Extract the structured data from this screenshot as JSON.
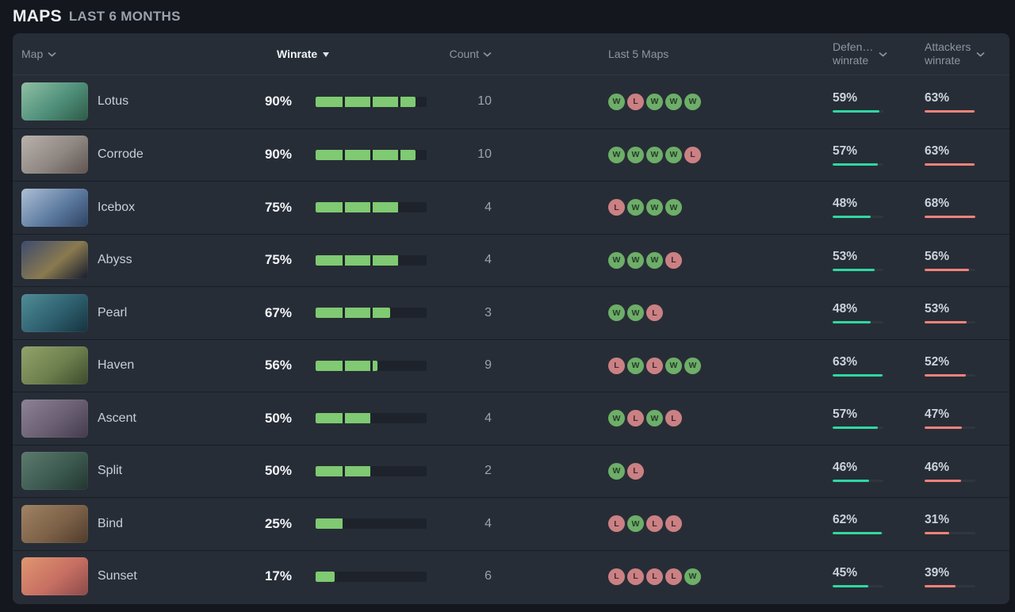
{
  "header": {
    "title": "MAPS",
    "subtitle": "LAST 6 MONTHS"
  },
  "columns": {
    "map": "Map",
    "winrate": "Winrate",
    "count": "Count",
    "last5": "Last 5 Maps",
    "defenders_line1": "Defen…",
    "defenders_line2": "winrate",
    "attackers_line1": "Attackers",
    "attackers_line2": "winrate"
  },
  "colors": {
    "page_bg": "#14171d",
    "card_bg": "#272d36",
    "bar_fill": "#7fca72",
    "bar_track": "#1e232b",
    "win_badge": "#6dae68",
    "loss_badge": "#cb8184",
    "defenders_accent": "#30d7a1",
    "attackers_accent": "#f2827a"
  },
  "rows": [
    {
      "map": "Lotus",
      "winrate_label": "90%",
      "winrate": 90,
      "count": "10",
      "last5": [
        "W",
        "L",
        "W",
        "W",
        "W"
      ],
      "def_label": "59%",
      "def": 59,
      "atk_label": "63%",
      "atk": 63,
      "thumb": [
        "#8fc0a4",
        "#4f8f7a",
        "#2e5a45"
      ]
    },
    {
      "map": "Corrode",
      "winrate_label": "90%",
      "winrate": 90,
      "count": "10",
      "last5": [
        "W",
        "W",
        "W",
        "W",
        "L"
      ],
      "def_label": "57%",
      "def": 57,
      "atk_label": "63%",
      "atk": 63,
      "thumb": [
        "#bab2ab",
        "#8e8782",
        "#5f5450"
      ]
    },
    {
      "map": "Icebox",
      "winrate_label": "75%",
      "winrate": 75,
      "count": "4",
      "last5": [
        "L",
        "W",
        "W",
        "W"
      ],
      "def_label": "48%",
      "def": 48,
      "atk_label": "68%",
      "atk": 68,
      "thumb": [
        "#aebfd6",
        "#5d7ba0",
        "#2e4263"
      ]
    },
    {
      "map": "Abyss",
      "winrate_label": "75%",
      "winrate": 75,
      "count": "4",
      "last5": [
        "W",
        "W",
        "W",
        "L"
      ],
      "def_label": "53%",
      "def": 53,
      "atk_label": "56%",
      "atk": 56,
      "thumb": [
        "#3d4a6e",
        "#8a7a4f",
        "#141a2e"
      ]
    },
    {
      "map": "Pearl",
      "winrate_label": "67%",
      "winrate": 67,
      "count": "3",
      "last5": [
        "W",
        "W",
        "L"
      ],
      "def_label": "48%",
      "def": 48,
      "atk_label": "53%",
      "atk": 53,
      "thumb": [
        "#4f8d96",
        "#2e5f6e",
        "#16323d"
      ]
    },
    {
      "map": "Haven",
      "winrate_label": "56%",
      "winrate": 56,
      "count": "9",
      "last5": [
        "L",
        "W",
        "L",
        "W",
        "W"
      ],
      "def_label": "63%",
      "def": 63,
      "atk_label": "52%",
      "atk": 52,
      "thumb": [
        "#93a36b",
        "#6d7f4d",
        "#3c4a2c"
      ]
    },
    {
      "map": "Ascent",
      "winrate_label": "50%",
      "winrate": 50,
      "count": "4",
      "last5": [
        "W",
        "L",
        "W",
        "L"
      ],
      "def_label": "57%",
      "def": 57,
      "atk_label": "47%",
      "atk": 47,
      "thumb": [
        "#8d8296",
        "#6a5f72",
        "#433a4e"
      ]
    },
    {
      "map": "Split",
      "winrate_label": "50%",
      "winrate": 50,
      "count": "2",
      "last5": [
        "W",
        "L"
      ],
      "def_label": "46%",
      "def": 46,
      "atk_label": "46%",
      "atk": 46,
      "thumb": [
        "#5d7a6e",
        "#3c5a50",
        "#22352f"
      ]
    },
    {
      "map": "Bind",
      "winrate_label": "25%",
      "winrate": 25,
      "count": "4",
      "last5": [
        "L",
        "W",
        "L",
        "L"
      ],
      "def_label": "62%",
      "def": 62,
      "atk_label": "31%",
      "atk": 31,
      "thumb": [
        "#a08363",
        "#7d6148",
        "#4f3c2c"
      ]
    },
    {
      "map": "Sunset",
      "winrate_label": "17%",
      "winrate": 17,
      "count": "6",
      "last5": [
        "L",
        "L",
        "L",
        "L",
        "W"
      ],
      "def_label": "45%",
      "def": 45,
      "atk_label": "39%",
      "atk": 39,
      "thumb": [
        "#e0966f",
        "#c76f63",
        "#8a4a4a"
      ]
    }
  ]
}
